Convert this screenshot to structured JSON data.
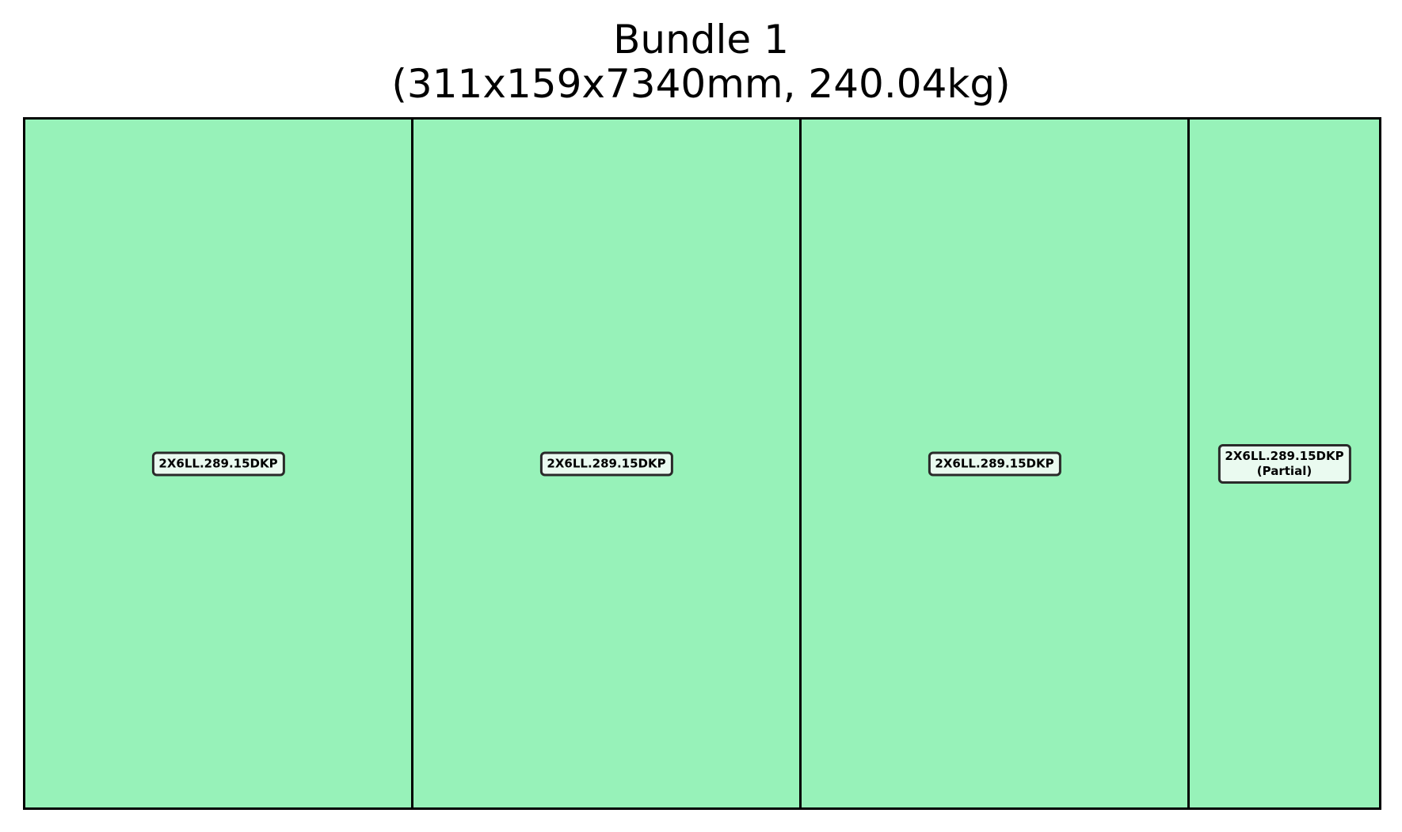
{
  "bundle": {
    "title": "Bundle 1",
    "subtitle": "(311x159x7340mm, 240.04kg)",
    "pieces": [
      {
        "label": "2X6LL.289.15DKP",
        "note": ""
      },
      {
        "label": "2X6LL.289.15DKP",
        "note": ""
      },
      {
        "label": "2X6LL.289.15DKP",
        "note": ""
      },
      {
        "label": "2X6LL.289.15DKP",
        "note": "(Partial)"
      }
    ],
    "colors": {
      "piece_fill": "#97f2b9",
      "label_fill": "#eafaf0",
      "border": "#000000"
    }
  }
}
